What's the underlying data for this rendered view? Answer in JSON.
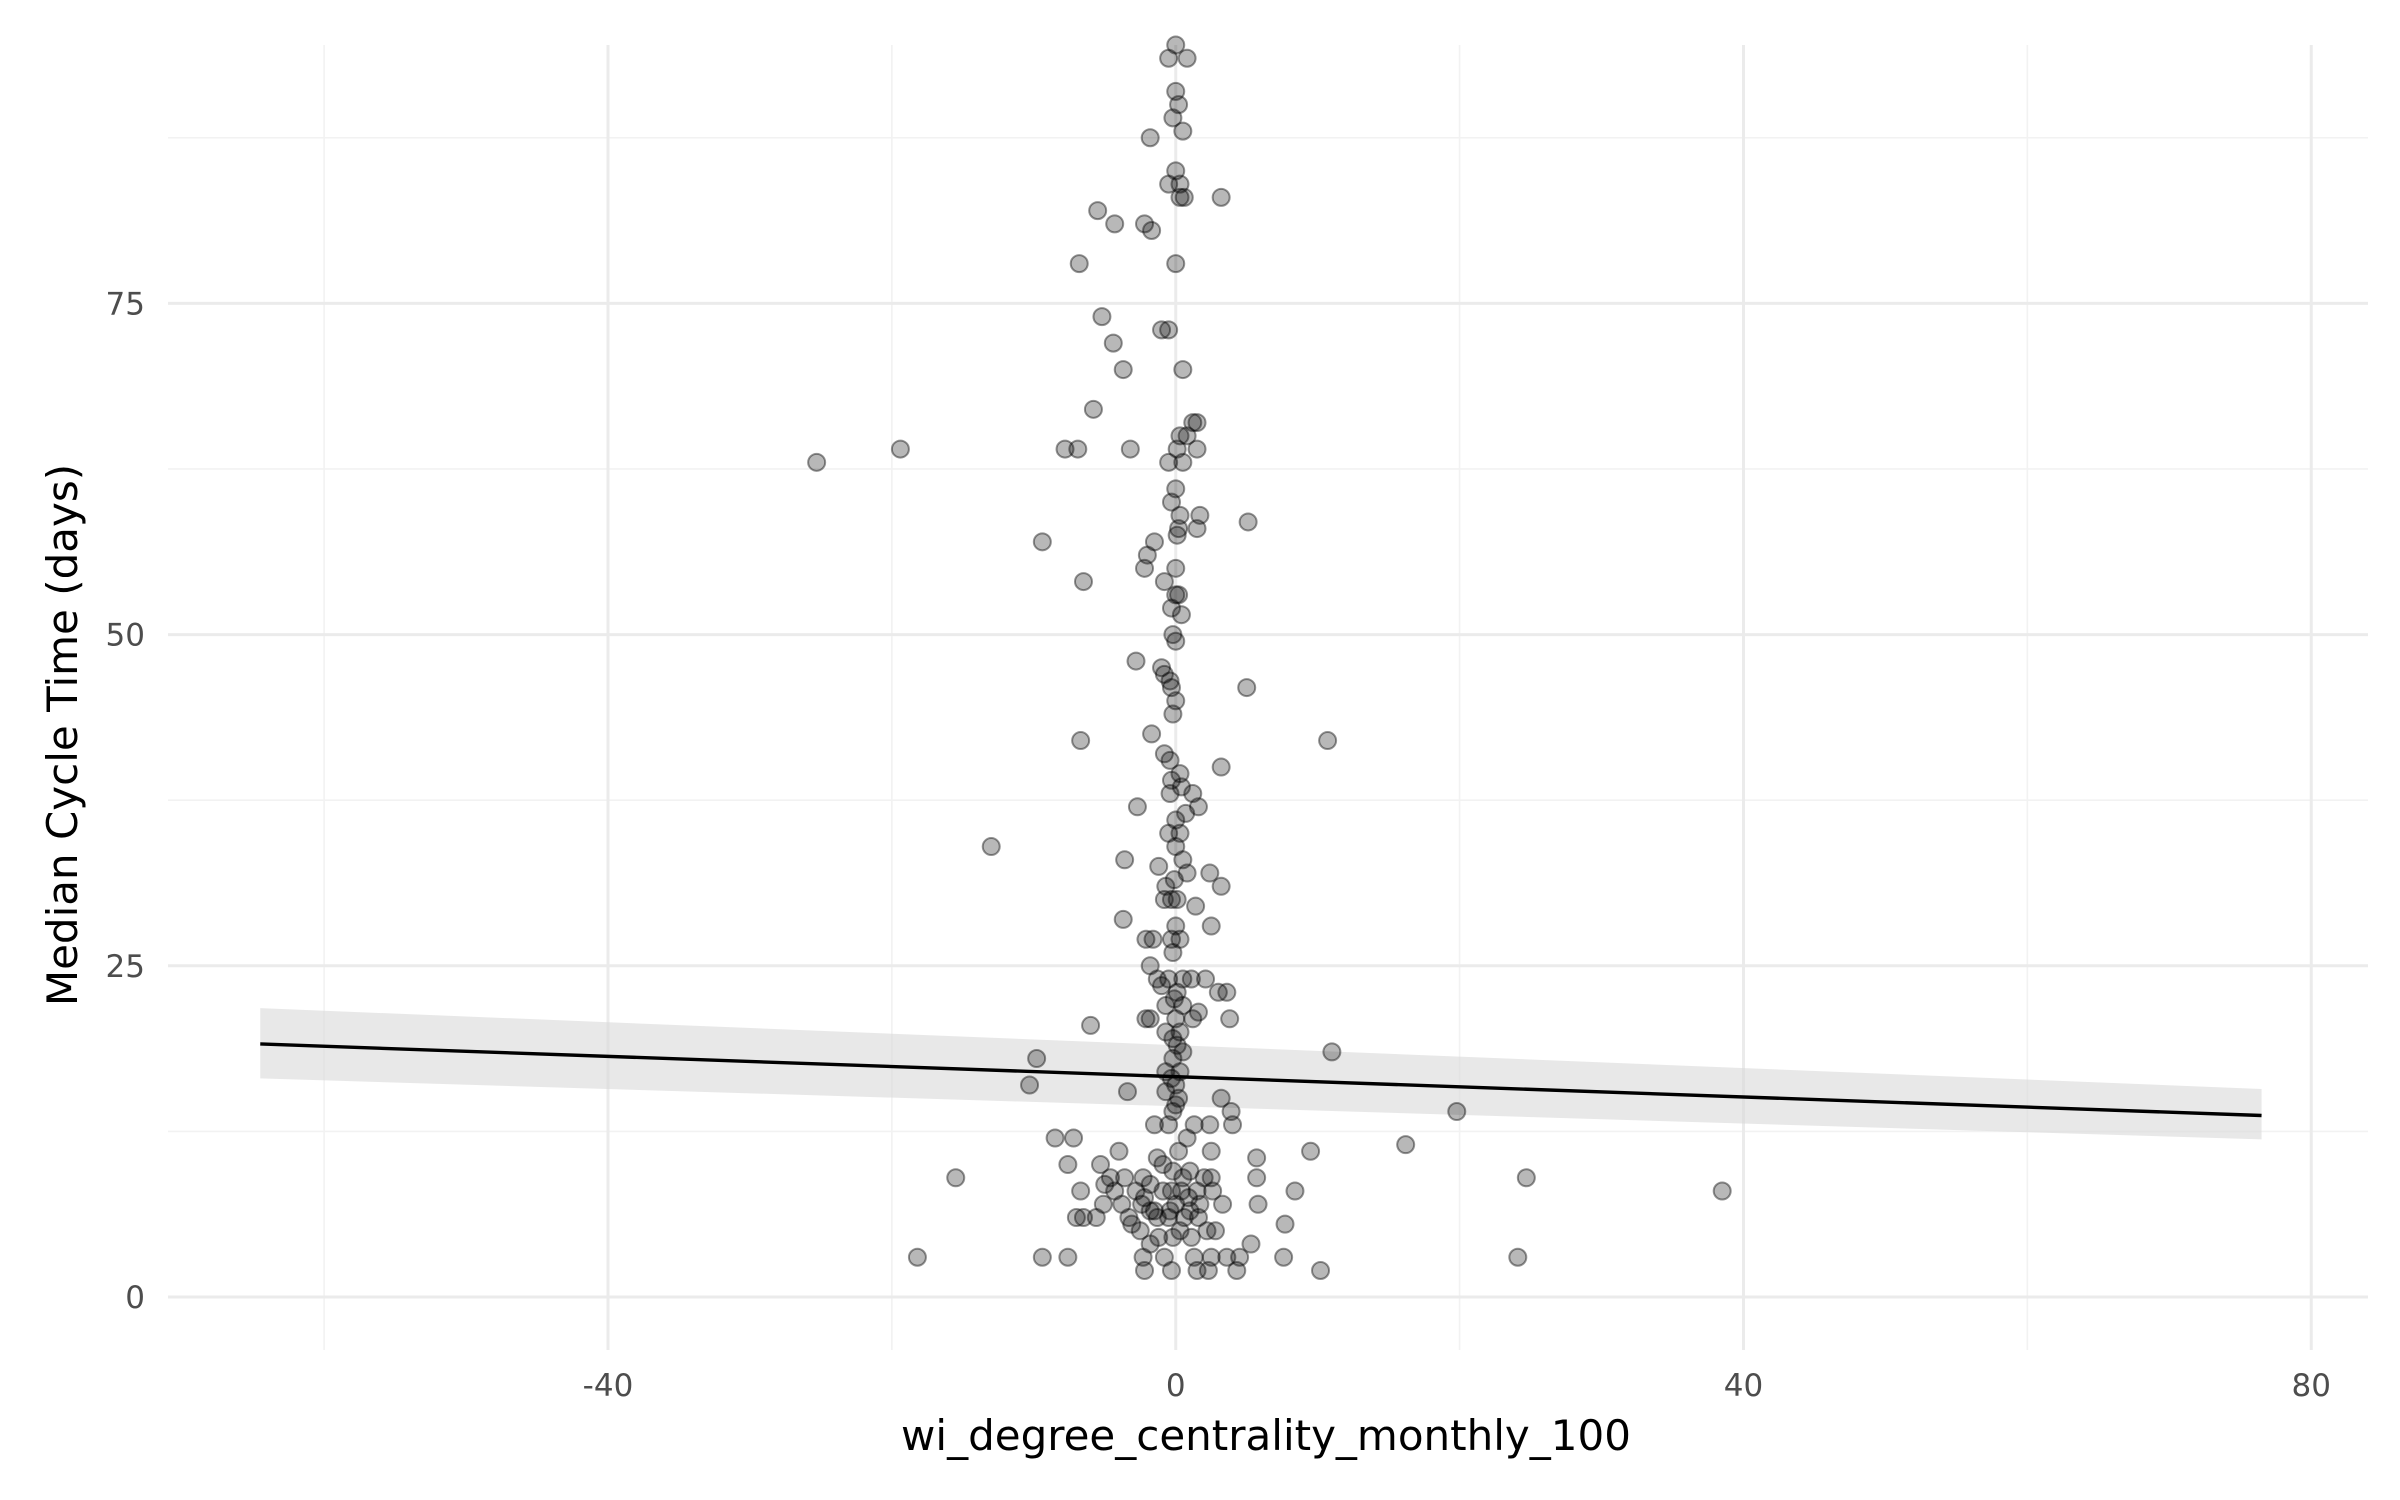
{
  "chart_data": {
    "type": "scatter",
    "xlabel": "wi_degree_centrality_monthly_100",
    "ylabel": "Median Cycle Time (days)",
    "xlim": [
      -71,
      84
    ],
    "ylim": [
      -4,
      94.5
    ],
    "x_ticks": [
      -40,
      0,
      40,
      80
    ],
    "y_ticks": [
      0,
      25,
      50,
      75
    ],
    "x_tick_labels": [
      "-40",
      "0",
      "40",
      "80"
    ],
    "y_tick_labels": [
      "0",
      "25",
      "50",
      "75"
    ],
    "grid": true,
    "point_color": "#000000",
    "point_alpha": 0.28,
    "line_color": "#000000",
    "ribbon_color": "#d9d9d9",
    "trend": {
      "x": [
        -64.5,
        76.5
      ],
      "y": [
        19.1,
        13.7
      ],
      "lower": [
        16.5,
        11.9
      ],
      "upper": [
        21.8,
        15.7
      ]
    },
    "points": [
      [
        0,
        94.5
      ],
      [
        0.8,
        93.5
      ],
      [
        -0.5,
        93.5
      ],
      [
        0,
        91
      ],
      [
        0.2,
        90
      ],
      [
        -0.2,
        89
      ],
      [
        0.5,
        88
      ],
      [
        -1.8,
        87.5
      ],
      [
        0,
        85
      ],
      [
        -0.5,
        84
      ],
      [
        0.3,
        84
      ],
      [
        0.3,
        83
      ],
      [
        0.6,
        83
      ],
      [
        3.2,
        83
      ],
      [
        -5.5,
        82
      ],
      [
        -4.3,
        81
      ],
      [
        -2.2,
        81
      ],
      [
        -1.7,
        80.5
      ],
      [
        -6.8,
        78
      ],
      [
        0,
        78
      ],
      [
        -5.2,
        74
      ],
      [
        -4.4,
        72
      ],
      [
        -1,
        73
      ],
      [
        -0.5,
        73
      ],
      [
        0.5,
        70
      ],
      [
        -3.7,
        70
      ],
      [
        -5.8,
        67
      ],
      [
        0.3,
        65
      ],
      [
        0.8,
        65
      ],
      [
        1.2,
        66
      ],
      [
        1.5,
        66
      ],
      [
        -25.3,
        63
      ],
      [
        -19.4,
        64
      ],
      [
        -7.8,
        64
      ],
      [
        -6.9,
        64
      ],
      [
        -3.2,
        64
      ],
      [
        0.1,
        64
      ],
      [
        1.5,
        64
      ],
      [
        -0.5,
        63
      ],
      [
        0.5,
        63
      ],
      [
        0,
        61
      ],
      [
        -0.3,
        60
      ],
      [
        0.3,
        59
      ],
      [
        1.7,
        59
      ],
      [
        5.1,
        58.5
      ],
      [
        0.2,
        58
      ],
      [
        1.5,
        58
      ],
      [
        0.1,
        57.5
      ],
      [
        -9.4,
        57
      ],
      [
        -1.5,
        57
      ],
      [
        -2,
        56
      ],
      [
        -2.2,
        55
      ],
      [
        0,
        55
      ],
      [
        -6.5,
        54
      ],
      [
        -0.8,
        54
      ],
      [
        0,
        53
      ],
      [
        0.2,
        53
      ],
      [
        -0.3,
        52
      ],
      [
        0.4,
        51.5
      ],
      [
        -0.2,
        50
      ],
      [
        0,
        49.5
      ],
      [
        -2.8,
        48
      ],
      [
        -1,
        47.5
      ],
      [
        -0.8,
        47
      ],
      [
        -0.4,
        46.5
      ],
      [
        -0.3,
        46
      ],
      [
        5,
        46
      ],
      [
        0,
        45
      ],
      [
        -0.2,
        44
      ],
      [
        -1.7,
        42.5
      ],
      [
        -6.7,
        42
      ],
      [
        10.7,
        42
      ],
      [
        -0.8,
        41
      ],
      [
        -0.4,
        40.5
      ],
      [
        0.3,
        39.5
      ],
      [
        3.2,
        40
      ],
      [
        -0.3,
        39
      ],
      [
        0.4,
        38.5
      ],
      [
        1.2,
        38
      ],
      [
        -0.4,
        38
      ],
      [
        1.6,
        37
      ],
      [
        -2.7,
        37
      ],
      [
        0.7,
        36.5
      ],
      [
        0,
        36
      ],
      [
        0.3,
        35
      ],
      [
        -0.5,
        35
      ],
      [
        -13,
        34
      ],
      [
        0,
        34
      ],
      [
        -3.6,
        33
      ],
      [
        0.5,
        33
      ],
      [
        0.8,
        32
      ],
      [
        2.4,
        32
      ],
      [
        -1.2,
        32.5
      ],
      [
        -0.1,
        31.5
      ],
      [
        3.2,
        31
      ],
      [
        -0.7,
        31
      ],
      [
        -0.3,
        30
      ],
      [
        -0.8,
        30
      ],
      [
        0.1,
        30
      ],
      [
        1.4,
        29.5
      ],
      [
        -3.7,
        28.5
      ],
      [
        0,
        28
      ],
      [
        2.5,
        28
      ],
      [
        -2.1,
        27
      ],
      [
        -1.6,
        27
      ],
      [
        -0.3,
        27
      ],
      [
        0.3,
        27
      ],
      [
        -0.2,
        26
      ],
      [
        -1.8,
        25
      ],
      [
        0.5,
        24
      ],
      [
        1.1,
        24
      ],
      [
        2.1,
        24
      ],
      [
        -1.3,
        24
      ],
      [
        -0.5,
        24
      ],
      [
        -1,
        23.5
      ],
      [
        0.1,
        23
      ],
      [
        3,
        23
      ],
      [
        3.6,
        23
      ],
      [
        -0.1,
        22.5
      ],
      [
        -0.7,
        22
      ],
      [
        0.5,
        22
      ],
      [
        -1.8,
        21
      ],
      [
        -2.1,
        21
      ],
      [
        0,
        21
      ],
      [
        1.2,
        21
      ],
      [
        1.6,
        21.5
      ],
      [
        3.8,
        21
      ],
      [
        -6,
        20.5
      ],
      [
        -0.7,
        20
      ],
      [
        0.3,
        20
      ],
      [
        -0.2,
        19.5
      ],
      [
        0.1,
        19
      ],
      [
        0.5,
        18.5
      ],
      [
        11,
        18.5
      ],
      [
        -0.2,
        18
      ],
      [
        -9.8,
        18
      ],
      [
        0.3,
        17
      ],
      [
        -0.7,
        17
      ],
      [
        -0.3,
        16.5
      ],
      [
        -10.3,
        16
      ],
      [
        0,
        16
      ],
      [
        -0.7,
        15.5
      ],
      [
        -3.4,
        15.5
      ],
      [
        0.2,
        15
      ],
      [
        3.2,
        15
      ],
      [
        -0.2,
        14
      ],
      [
        0,
        14.5
      ],
      [
        3.9,
        14
      ],
      [
        19.8,
        14
      ],
      [
        -0.5,
        13
      ],
      [
        1.3,
        13
      ],
      [
        2.4,
        13
      ],
      [
        4,
        13
      ],
      [
        -1.5,
        13
      ],
      [
        -8.5,
        12
      ],
      [
        -7.2,
        12
      ],
      [
        0.8,
        12
      ],
      [
        16.2,
        11.5
      ],
      [
        0.2,
        11
      ],
      [
        2.5,
        11
      ],
      [
        9.5,
        11
      ],
      [
        -4,
        11
      ],
      [
        -1.3,
        10.5
      ],
      [
        -0.9,
        10
      ],
      [
        5.7,
        10.5
      ],
      [
        -5.3,
        10
      ],
      [
        -7.6,
        10
      ],
      [
        1,
        9.5
      ],
      [
        -4.6,
        9
      ],
      [
        -3.6,
        9
      ],
      [
        -15.5,
        9
      ],
      [
        -2.3,
        9
      ],
      [
        0.5,
        9
      ],
      [
        2,
        9
      ],
      [
        2.5,
        9
      ],
      [
        5.7,
        9
      ],
      [
        24.7,
        9
      ],
      [
        -5,
        8.5
      ],
      [
        -1.8,
        8.5
      ],
      [
        -0.9,
        8
      ],
      [
        0.4,
        8
      ],
      [
        1.5,
        8
      ],
      [
        2.6,
        8
      ],
      [
        -6.7,
        8
      ],
      [
        -4.3,
        8
      ],
      [
        -2.8,
        8
      ],
      [
        -0.3,
        8
      ],
      [
        8.4,
        8
      ],
      [
        38.5,
        8
      ],
      [
        -2.2,
        7.5
      ],
      [
        0.9,
        7.5
      ],
      [
        -5.1,
        7
      ],
      [
        -3.8,
        7
      ],
      [
        -2.4,
        7
      ],
      [
        0,
        7
      ],
      [
        1.7,
        7
      ],
      [
        3.3,
        7
      ],
      [
        5.8,
        7
      ],
      [
        -1.5,
        6.5
      ],
      [
        -0.4,
        6.5
      ],
      [
        1,
        6.5
      ],
      [
        -6.5,
        6
      ],
      [
        -5.6,
        6
      ],
      [
        -7,
        6
      ],
      [
        -3.3,
        6
      ],
      [
        -1.3,
        6
      ],
      [
        -0.5,
        6
      ],
      [
        0.6,
        6
      ],
      [
        1.6,
        6
      ],
      [
        -3.1,
        5.5
      ],
      [
        7.7,
        5.5
      ],
      [
        -2.5,
        5
      ],
      [
        0.3,
        5
      ],
      [
        2.2,
        5
      ],
      [
        -1.2,
        4.5
      ],
      [
        -0.2,
        4.5
      ],
      [
        5.3,
        4
      ],
      [
        -1.8,
        4
      ],
      [
        -0.8,
        3
      ],
      [
        1.3,
        3
      ],
      [
        2.5,
        3
      ],
      [
        3.6,
        3
      ],
      [
        4.5,
        3
      ],
      [
        7.6,
        3
      ],
      [
        -18.2,
        3
      ],
      [
        -9.4,
        3
      ],
      [
        -7.6,
        3
      ],
      [
        -2.3,
        3
      ],
      [
        24.1,
        3
      ],
      [
        -2.2,
        2
      ],
      [
        -0.3,
        2
      ],
      [
        1.5,
        2
      ],
      [
        2.3,
        2
      ],
      [
        4.3,
        2
      ],
      [
        10.2,
        2
      ],
      [
        1.1,
        4.5
      ],
      [
        -1.8,
        6.5
      ],
      [
        -0.2,
        9.5
      ],
      [
        2.8,
        5
      ]
    ]
  }
}
